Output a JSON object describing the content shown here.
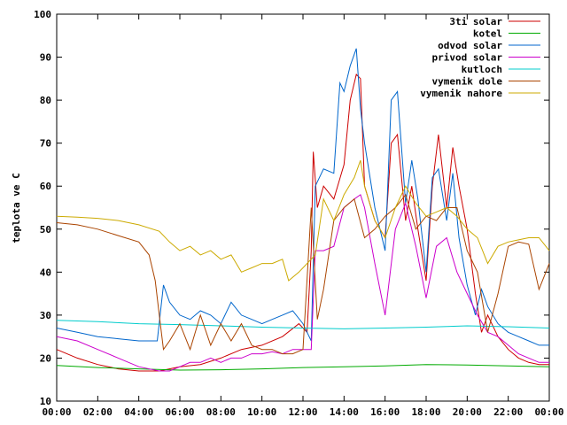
{
  "chart_data": {
    "type": "line",
    "title": "",
    "xlabel": "",
    "ylabel": "teplota ve C",
    "xlim": [
      0,
      24
    ],
    "ylim": [
      10,
      100
    ],
    "x_ticks": [
      {
        "value": 0,
        "label": "00:00"
      },
      {
        "value": 2,
        "label": "02:00"
      },
      {
        "value": 4,
        "label": "04:00"
      },
      {
        "value": 6,
        "label": "06:00"
      },
      {
        "value": 8,
        "label": "08:00"
      },
      {
        "value": 10,
        "label": "10:00"
      },
      {
        "value": 12,
        "label": "12:00"
      },
      {
        "value": 14,
        "label": "14:00"
      },
      {
        "value": 16,
        "label": "16:00"
      },
      {
        "value": 18,
        "label": "18:00"
      },
      {
        "value": 20,
        "label": "20:00"
      },
      {
        "value": 22,
        "label": "22:00"
      },
      {
        "value": 24,
        "label": "00:00"
      }
    ],
    "y_ticks": [
      10,
      20,
      30,
      40,
      50,
      60,
      70,
      80,
      90,
      100
    ],
    "grid": false,
    "legend_position": "top-right",
    "series": [
      {
        "name": "3ti solar",
        "color": "#cc0000",
        "x": [
          0,
          1,
          2,
          3,
          4,
          5,
          5.5,
          6,
          7,
          8,
          9,
          10,
          11,
          11.8,
          12.2,
          12.4,
          12.5,
          12.7,
          13,
          13.5,
          14,
          14.3,
          14.6,
          14.8,
          15,
          15.5,
          16,
          16.3,
          16.6,
          17,
          17.3,
          17.6,
          18,
          18.3,
          18.6,
          19,
          19.3,
          19.6,
          20,
          20.4,
          20.7,
          21,
          21.5,
          22,
          22.5,
          23,
          23.5,
          24
        ],
        "y": [
          22,
          20,
          18.5,
          17.5,
          17,
          17,
          17.5,
          18,
          18.5,
          20,
          22,
          23,
          25,
          28,
          26,
          45,
          68,
          55,
          60,
          57,
          65,
          80,
          86,
          85,
          60,
          52,
          48,
          70,
          72,
          52,
          60,
          50,
          38,
          60,
          72,
          55,
          69,
          60,
          50,
          35,
          26,
          30,
          25,
          22,
          20,
          19,
          18.5,
          18.5
        ]
      },
      {
        "name": "kotel",
        "color": "#00aa00",
        "x": [
          0,
          2,
          4,
          6,
          8,
          10,
          12,
          14,
          16,
          18,
          20,
          22,
          24
        ],
        "y": [
          18.3,
          17.8,
          17.5,
          17.2,
          17.3,
          17.5,
          17.8,
          18,
          18.2,
          18.5,
          18.4,
          18.2,
          18
        ]
      },
      {
        "name": "odvod solar",
        "color": "#0066cc",
        "x": [
          0,
          1,
          2,
          3,
          4,
          4.9,
          5.2,
          5.5,
          6,
          6.5,
          7,
          7.5,
          8,
          8.5,
          9,
          9.5,
          10,
          10.5,
          11,
          11.5,
          12,
          12.4,
          12.6,
          13,
          13.5,
          13.8,
          14,
          14.3,
          14.6,
          14.8,
          15,
          15.5,
          16,
          16.3,
          16.6,
          17,
          17.3,
          17.6,
          18,
          18.3,
          18.6,
          19,
          19.3,
          19.6,
          20,
          20.4,
          20.7,
          21,
          21.5,
          22,
          22.5,
          23,
          23.5,
          24
        ],
        "y": [
          27,
          26,
          25,
          24.5,
          24,
          24,
          37,
          33,
          30,
          29,
          31,
          30,
          28,
          33,
          30,
          29,
          28,
          29,
          30,
          31,
          28,
          24,
          60,
          64,
          63,
          84,
          82,
          88,
          92,
          78,
          70,
          55,
          45,
          80,
          82,
          56,
          66,
          57,
          40,
          62,
          64,
          52,
          63,
          48,
          37,
          30,
          36,
          32,
          28,
          26,
          25,
          24,
          23,
          23
        ]
      },
      {
        "name": "privod solar",
        "color": "#cc00cc",
        "x": [
          0,
          1,
          2,
          3,
          4,
          5,
          5.5,
          6,
          6.5,
          7,
          7.5,
          8,
          8.5,
          9,
          9.5,
          10,
          10.5,
          11,
          11.5,
          12,
          12.4,
          12.6,
          13,
          13.5,
          14,
          14.5,
          14.8,
          15,
          15.5,
          16,
          16.5,
          17,
          17.5,
          18,
          18.5,
          19,
          19.5,
          20,
          20.5,
          21,
          21.5,
          22,
          22.5,
          23,
          23.5,
          24
        ],
        "y": [
          25,
          24,
          22,
          20,
          18,
          17,
          17,
          18,
          19,
          19,
          20,
          19,
          20,
          20,
          21,
          21,
          21.5,
          21,
          22,
          22,
          22,
          45,
          45,
          46,
          55,
          57,
          58,
          55,
          42,
          30,
          50,
          56,
          46,
          34,
          46,
          48,
          40,
          35,
          30,
          26,
          25,
          23,
          21,
          20,
          19,
          19
        ]
      },
      {
        "name": "kutloch",
        "color": "#00cccc",
        "x": [
          0,
          2,
          4,
          6,
          8,
          10,
          12,
          14,
          16,
          18,
          20,
          22,
          24
        ],
        "y": [
          28.8,
          28.5,
          28,
          27.8,
          27.5,
          27.2,
          27,
          26.8,
          27,
          27.2,
          27.5,
          27.3,
          27
        ]
      },
      {
        "name": "vymenik dole",
        "color": "#aa4400",
        "x": [
          0,
          1,
          2,
          3,
          4,
          4.5,
          4.8,
          5,
          5.2,
          5.5,
          6,
          6.5,
          7,
          7.5,
          8,
          8.5,
          9,
          9.5,
          10,
          10.5,
          11,
          11.5,
          12,
          12.4,
          12.7,
          13,
          13.5,
          14,
          14.5,
          15,
          15.5,
          16,
          16.5,
          17,
          17.5,
          18,
          18.5,
          19,
          19.5,
          20,
          20.5,
          21,
          21.5,
          22,
          22.5,
          23,
          23.5,
          24
        ],
        "y": [
          51.5,
          51,
          50,
          48.5,
          47,
          44,
          38,
          30,
          22,
          24,
          28,
          22,
          30,
          23,
          28,
          24,
          28,
          23,
          22,
          22,
          21,
          21,
          22,
          55,
          29,
          36,
          52,
          55,
          57,
          48,
          50,
          53,
          55,
          58,
          50,
          53,
          52,
          55,
          55,
          45,
          40,
          26,
          35,
          46,
          47,
          46.5,
          36,
          42
        ]
      },
      {
        "name": "vymenik nahore",
        "color": "#ccaa00",
        "x": [
          0,
          1,
          2,
          3,
          4,
          5,
          5.5,
          6,
          6.5,
          7,
          7.5,
          8,
          8.5,
          9,
          9.5,
          10,
          10.5,
          11,
          11.3,
          11.8,
          12.2,
          12.6,
          13,
          13.5,
          14,
          14.5,
          14.8,
          15,
          15.5,
          16,
          16.5,
          17,
          17.5,
          18,
          18.5,
          19,
          19.5,
          20,
          20.5,
          21,
          21.5,
          22,
          22.5,
          23,
          23.5,
          24
        ],
        "y": [
          53,
          52.8,
          52.5,
          52,
          51,
          49.5,
          47,
          45,
          46,
          44,
          45,
          43,
          44,
          40,
          41,
          42,
          42,
          43,
          38,
          40,
          42,
          44,
          57,
          52,
          58,
          62,
          66,
          60,
          52,
          48,
          55,
          60,
          56,
          53,
          54,
          55,
          53,
          50,
          48,
          42,
          46,
          47,
          47.5,
          48,
          48,
          45
        ]
      }
    ]
  }
}
